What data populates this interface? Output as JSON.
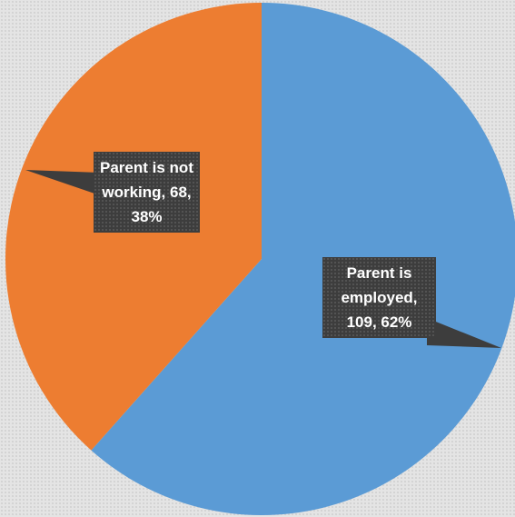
{
  "chart_data": {
    "type": "pie",
    "categories": [
      "Parent is employed",
      "Parent is not working"
    ],
    "values": [
      109,
      68
    ],
    "value_labels": [
      "Parent is employed, 109, 62%",
      "Parent is not working, 68, 38%"
    ],
    "colors": [
      "#5b9bd5",
      "#ed7d31"
    ]
  }
}
